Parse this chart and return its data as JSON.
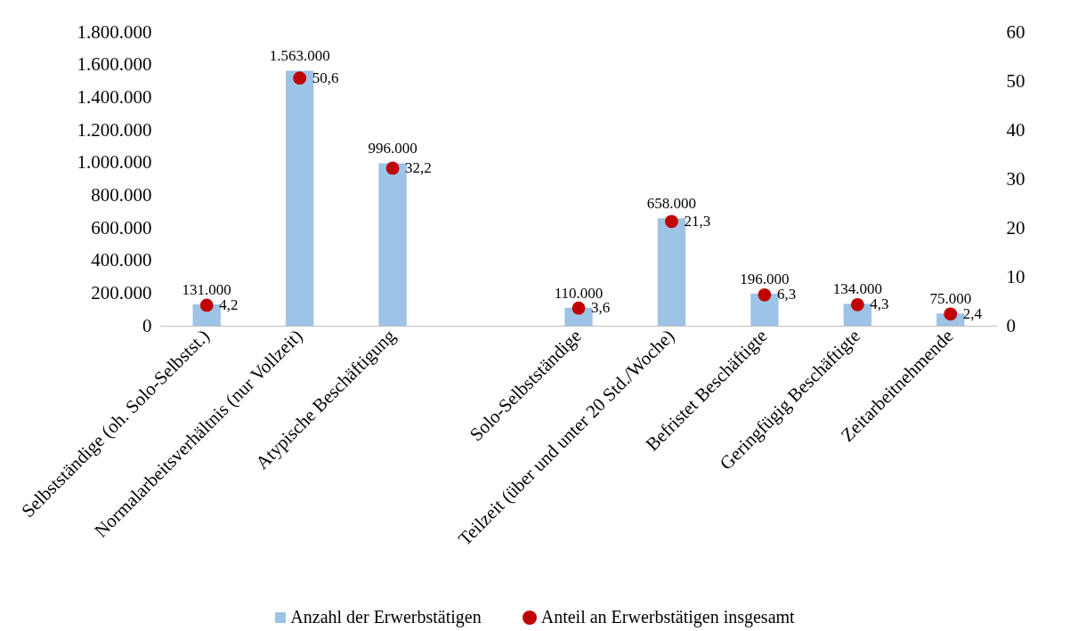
{
  "chart_data": {
    "type": "bar",
    "categories": [
      "Selbstständige (oh. Solo-Selbstst.)",
      "Normalarbeitsverhältnis (nur Vollzeit)",
      "Atypische Beschäftigung",
      null,
      "Solo-Selbstständige",
      "Teilzeit (über und unter 20 Std./Woche)",
      "Befristet Beschäftigte",
      "Geringfügig Beschäftigte",
      "Zeitarbeitnehmende"
    ],
    "series": [
      {
        "name": "Anzahl der Erwerbstätigen",
        "color": "#9dc3e6",
        "values": [
          131000,
          1563000,
          996000,
          null,
          110000,
          658000,
          196000,
          134000,
          75000
        ],
        "value_labels": [
          "131.000",
          "1.563.000",
          "996.000",
          null,
          "110.000",
          "658.000",
          "196.000",
          "134.000",
          "75.000"
        ]
      },
      {
        "name": "Anteil an Erwerbstätigen insgesamt",
        "type": "scatter",
        "axis": "y2",
        "color": "#c00000",
        "marker": "circle",
        "values": [
          4.2,
          50.6,
          32.2,
          null,
          3.6,
          21.3,
          6.3,
          4.3,
          2.4
        ],
        "value_labels": [
          "4,2",
          "50,6",
          "32,2",
          null,
          "3,6",
          "21,3",
          "6,3",
          "4,3",
          "2,4"
        ]
      }
    ],
    "ylim": [
      0,
      1800000
    ],
    "yticks": [
      {
        "value": 0,
        "label": "0"
      },
      {
        "value": 200000,
        "label": "200.000"
      },
      {
        "value": 400000,
        "label": "400.000"
      },
      {
        "value": 600000,
        "label": "600.000"
      },
      {
        "value": 800000,
        "label": "800.000"
      },
      {
        "value": 1000000,
        "label": "1.000.000"
      },
      {
        "value": 1200000,
        "label": "1.200.000"
      },
      {
        "value": 1400000,
        "label": "1.400.000"
      },
      {
        "value": 1600000,
        "label": "1.600.000"
      },
      {
        "value": 1800000,
        "label": "1.800.000"
      }
    ],
    "y2lim": [
      0,
      60
    ],
    "y2ticks": [
      0,
      10,
      20,
      30,
      40,
      50,
      60
    ],
    "legend": "bottom"
  }
}
